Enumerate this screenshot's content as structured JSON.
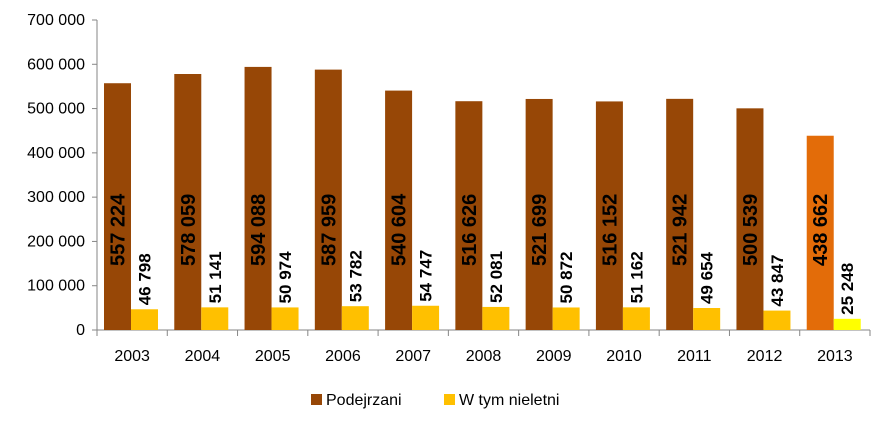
{
  "chart_data": {
    "type": "bar",
    "categories": [
      "2003",
      "2004",
      "2005",
      "2006",
      "2007",
      "2008",
      "2009",
      "2010",
      "2011",
      "2012",
      "2013"
    ],
    "series": [
      {
        "name": "Podejrzani",
        "values": [
          557224,
          578059,
          594088,
          587959,
          540604,
          516626,
          521699,
          516152,
          521942,
          500539,
          438662
        ],
        "labels": [
          "557 224",
          "578 059",
          "594 088",
          "587 959",
          "540 604",
          "516 626",
          "521 699",
          "516 152",
          "521 942",
          "500 539",
          "438 662"
        ],
        "color": "#974706",
        "highlight_color": "#E36C09"
      },
      {
        "name": "W tym nieletni",
        "values": [
          46798,
          51141,
          50974,
          53782,
          54747,
          52081,
          50872,
          51162,
          49654,
          43847,
          25248
        ],
        "labels": [
          "46 798",
          "51 141",
          "50 974",
          "53 782",
          "54 747",
          "52 081",
          "50 872",
          "51 162",
          "49 654",
          "43 847",
          "25 248"
        ],
        "color": "#FFC000",
        "highlight_color": "#FFFF00"
      }
    ],
    "highlight_index": 10,
    "ylim": [
      0,
      700000
    ],
    "yticks": [
      0,
      100000,
      200000,
      300000,
      400000,
      500000,
      600000,
      700000
    ],
    "ytick_labels": [
      "0",
      "100 000",
      "200 000",
      "300 000",
      "400 000",
      "500 000",
      "600 000",
      "700 000"
    ],
    "grid": false,
    "legend_position": "bottom",
    "title": "",
    "xlabel": "",
    "ylabel": ""
  }
}
